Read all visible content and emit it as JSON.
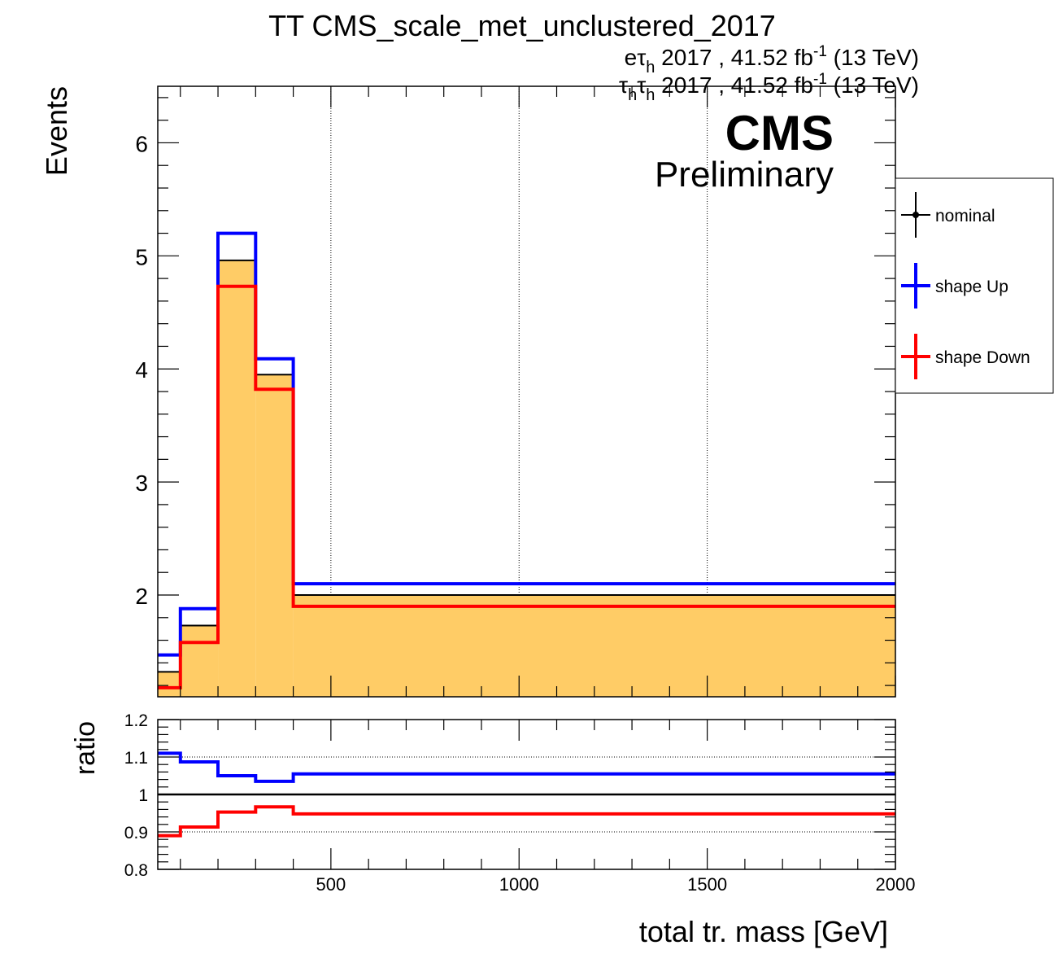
{
  "title": "TT CMS_scale_met_unclustered_2017",
  "lumi_lines": [
    {
      "channel_base": "eτ",
      "channel_sub": "h",
      "channel_base2": "",
      "channel_sub2": "",
      "text": " 2017 , 41.52 fb",
      "sup": "-1",
      "energy": " (13 TeV)"
    },
    {
      "channel_base": "τ",
      "channel_sub": "h",
      "channel_base2": "τ",
      "channel_sub2": "h",
      "text": " 2017 , 41.52 fb",
      "sup": "-1",
      "energy": " (13 TeV)"
    }
  ],
  "cms_label": "CMS",
  "preliminary_label": "Preliminary",
  "colors": {
    "nominal_fill": "#ffcc66",
    "nominal_line": "#000000",
    "up": "#0000ff",
    "down": "#ff0000"
  },
  "legend": [
    {
      "name": "nominal",
      "color": "#000000",
      "marker": true
    },
    {
      "name": "shape Up",
      "color": "#0000ff",
      "marker": false
    },
    {
      "name": "shape Down",
      "color": "#ff0000",
      "marker": false
    }
  ],
  "chart_data": [
    {
      "type": "histogram",
      "panel": "main",
      "xlabel": "total tr. mass [GeV]",
      "ylabel": "Events",
      "xlim": [
        40,
        2000
      ],
      "ylim": [
        1.1,
        6.5
      ],
      "x_ticks": [
        500,
        1000,
        1500,
        2000
      ],
      "y_ticks": [
        2,
        3,
        4,
        5,
        6
      ],
      "grid_x": true,
      "bin_edges": [
        40,
        100,
        200,
        300,
        400,
        2000
      ],
      "series": [
        {
          "name": "nominal",
          "values": [
            1.32,
            1.73,
            4.96,
            3.95,
            2.0
          ],
          "style": "filled"
        },
        {
          "name": "shape Up",
          "values": [
            1.47,
            1.88,
            5.2,
            4.09,
            2.1
          ],
          "style": "line"
        },
        {
          "name": "shape Down",
          "values": [
            1.18,
            1.58,
            4.73,
            3.82,
            1.9
          ],
          "style": "line"
        }
      ]
    },
    {
      "type": "histogram",
      "panel": "ratio",
      "ylabel": "ratio",
      "xlim": [
        40,
        2000
      ],
      "ylim": [
        0.8,
        1.2
      ],
      "y_ticks": [
        0.8,
        0.9,
        1,
        1.1,
        1.2
      ],
      "y_tick_labels": [
        "0.8",
        "0.9",
        "1",
        "1.1",
        "1.2"
      ],
      "x_ticks": [
        500,
        1000,
        1500,
        2000
      ],
      "x_tick_labels": [
        "500",
        "1000",
        "1500",
        "2000"
      ],
      "grid_y": [
        0.9,
        1.1
      ],
      "bin_edges": [
        40,
        100,
        200,
        300,
        400,
        2000
      ],
      "series": [
        {
          "name": "nominal",
          "values": [
            1.0,
            1.0,
            1.0,
            1.0,
            1.0
          ]
        },
        {
          "name": "shape Up",
          "values": [
            1.11,
            1.087,
            1.05,
            1.035,
            1.055
          ]
        },
        {
          "name": "shape Down",
          "values": [
            0.89,
            0.913,
            0.953,
            0.967,
            0.948
          ]
        }
      ]
    }
  ]
}
